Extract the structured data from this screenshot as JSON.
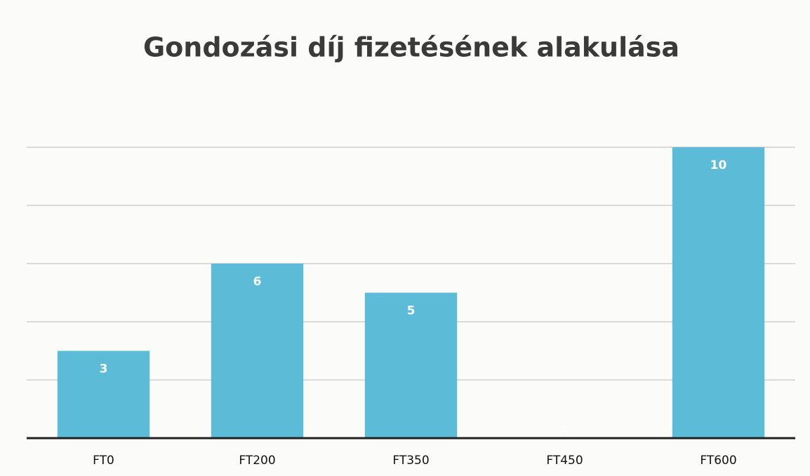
{
  "chart_data": {
    "type": "bar",
    "title": "Gondozási díj fizetésének alakulása",
    "categories": [
      "FT0",
      "FT200",
      "FT350",
      "FT450",
      "FT600"
    ],
    "values": [
      3,
      6,
      5,
      0,
      10
    ],
    "color": "#5cbcd8",
    "ylim": [
      0,
      10
    ],
    "yticks": [
      0,
      2,
      4,
      6,
      8,
      10
    ],
    "grid": true
  }
}
